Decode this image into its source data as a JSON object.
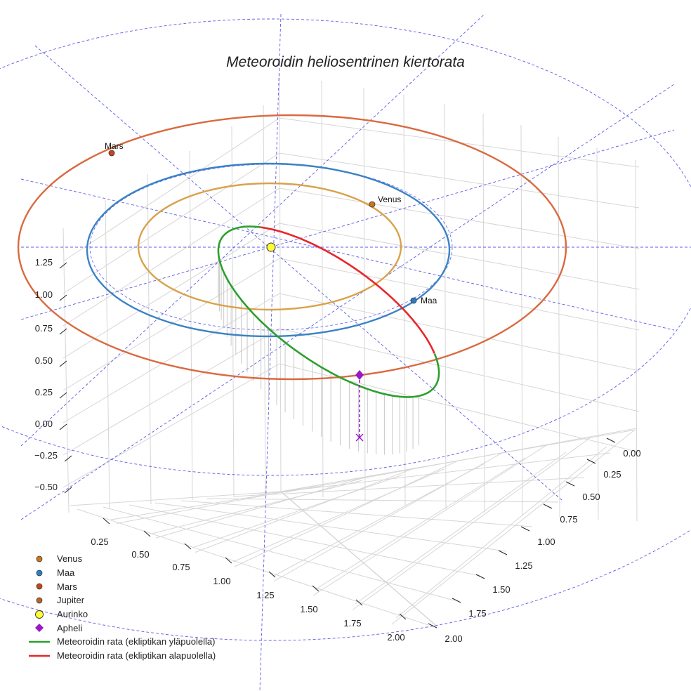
{
  "chart_data": {
    "type": "3d-line",
    "title": "Meteoroidin heliosentrinen kiertorata",
    "axes": {
      "x_ticks": [
        "0.25",
        "0.50",
        "0.75",
        "1.00",
        "1.25",
        "1.50",
        "1.75",
        "2.00"
      ],
      "y_ticks": [
        "0.00",
        "0.25",
        "0.50",
        "0.75",
        "1.00",
        "1.25",
        "1.50",
        "1.75",
        "2.00"
      ],
      "z_ticks": [
        "1.25",
        "1.00",
        "0.75",
        "0.50",
        "0.25",
        "0.00",
        "−0.25",
        "−0.50"
      ],
      "grid": true
    },
    "orbits": [
      {
        "name": "Venus",
        "radius_au": 0.72,
        "color": "#d9a24a"
      },
      {
        "name": "Maa",
        "radius_au": 1.0,
        "color": "#3b82c4"
      },
      {
        "name": "Mars",
        "radius_au": 1.52,
        "color": "#d96a3f"
      }
    ],
    "planets": [
      {
        "name": "Venus",
        "label": "Venus",
        "color": "#c9761d"
      },
      {
        "name": "Maa",
        "label": "Maa",
        "color": "#2e7cc2"
      },
      {
        "name": "Mars",
        "label": "Mars",
        "color": "#c8441b"
      },
      {
        "name": "Jupiter",
        "label": "",
        "color": "#b5652e"
      }
    ],
    "sun": {
      "name": "Aurinko",
      "color": "#ffff33"
    },
    "aphelion": {
      "name": "Apheli",
      "color": "#9a17c8"
    },
    "meteoroid_orbit": {
      "perihelion_au": 0.1,
      "aphelion_au": 1.35,
      "above_ecliptic": {
        "name": "Meteoroidin rata (ekliptikan yläpuolella)",
        "color": "#2ca02c"
      },
      "below_ecliptic": {
        "name": "Meteoroidin rata (ekliptikan alapuolella)",
        "color": "#e8262a"
      }
    },
    "ecliptic_reference_lines": {
      "style": "dashed",
      "color": "#5b5be8"
    }
  },
  "legend": [
    {
      "label": "Venus",
      "symbol": "dot",
      "color": "#c9761d"
    },
    {
      "label": "Maa",
      "symbol": "dot",
      "color": "#2e7cc2"
    },
    {
      "label": "Mars",
      "symbol": "dot",
      "color": "#c8441b"
    },
    {
      "label": "Jupiter",
      "symbol": "dot",
      "color": "#b5652e"
    },
    {
      "label": "Aurinko",
      "symbol": "sun",
      "color": "#ffff33"
    },
    {
      "label": "Apheli",
      "symbol": "diamond",
      "color": "#9a17c8"
    },
    {
      "label": "Meteoroidin rata (ekliptikan yläpuolella)",
      "symbol": "line",
      "color": "#2ca02c"
    },
    {
      "label": "Meteoroidin rata (ekliptikan alapuolella)",
      "symbol": "line",
      "color": "#e8262a"
    }
  ]
}
